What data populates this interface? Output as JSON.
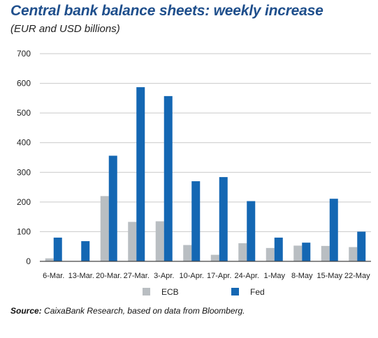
{
  "title": "Central bank balance sheets: weekly increase",
  "subtitle": "(EUR and USD billions)",
  "source_label": "Source:",
  "source_text": " CaixaBank Research, based on data from Bloomberg.",
  "colors": {
    "ecb": "#b9bec2",
    "fed": "#1467b3",
    "grid": "#c9c9c9",
    "axis": "#444444"
  },
  "chart_data": {
    "type": "bar",
    "categories": [
      "6-Mar.",
      "13-Mar.",
      "20-Mar.",
      "27-Mar.",
      "3-Apr.",
      "10-Apr.",
      "17-Apr.",
      "24-Apr.",
      "1-May",
      "8-May",
      "15-May",
      "22-May"
    ],
    "series": [
      {
        "name": "ECB",
        "values": [
          10,
          0,
          220,
          133,
          135,
          55,
          22,
          61,
          45,
          53,
          52,
          48
        ]
      },
      {
        "name": "Fed",
        "values": [
          80,
          68,
          356,
          587,
          557,
          270,
          284,
          203,
          80,
          63,
          211,
          100
        ]
      }
    ],
    "yticks": [
      0,
      100,
      200,
      300,
      400,
      500,
      600,
      700
    ],
    "ylim": [
      0,
      700
    ],
    "grid": true,
    "legend_position": "bottom"
  }
}
